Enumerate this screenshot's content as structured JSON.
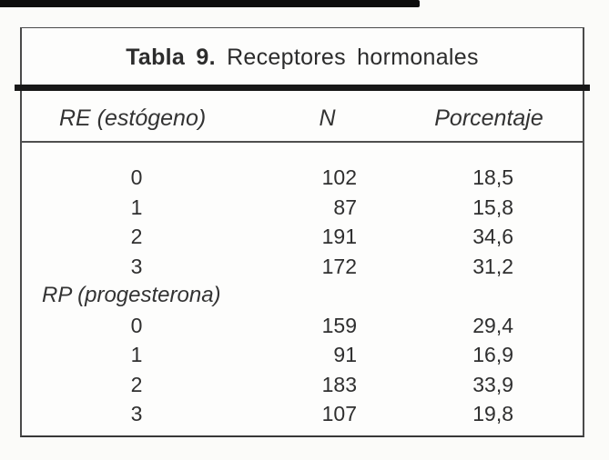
{
  "document": {
    "title": {
      "prefix": "Tabla 9.",
      "text": "Receptores hormonales"
    },
    "columns": {
      "group": "RE (estógeno)",
      "n": "N",
      "pct": "Porcentaje"
    },
    "rows": [
      {
        "level": "0",
        "n": "102",
        "pct": "18,5"
      },
      {
        "level": "1",
        "n": "87",
        "pct": "15,8"
      },
      {
        "level": "2",
        "n": "191",
        "pct": "34,6"
      },
      {
        "level": "3",
        "n": "172",
        "pct": "31,2"
      },
      {
        "label": "RP (progesterona)"
      },
      {
        "level": "0",
        "n": "159",
        "pct": "29,4"
      },
      {
        "level": "1",
        "n": "91",
        "pct": "16,9"
      },
      {
        "level": "2",
        "n": "183",
        "pct": "33,9"
      },
      {
        "level": "3",
        "n": "107",
        "pct": "19,8"
      }
    ]
  },
  "chart_data": {
    "type": "table",
    "title": "Tabla 9. Receptores hormonales",
    "columns": [
      "",
      "N",
      "Porcentaje"
    ],
    "sections": [
      {
        "label": "RE (estógeno)",
        "rows": [
          [
            0,
            102,
            18.5
          ],
          [
            1,
            87,
            15.8
          ],
          [
            2,
            191,
            34.6
          ],
          [
            3,
            172,
            31.2
          ]
        ]
      },
      {
        "label": "RP (progesterona)",
        "rows": [
          [
            0,
            159,
            29.4
          ],
          [
            1,
            91,
            16.9
          ],
          [
            2,
            183,
            33.9
          ],
          [
            3,
            107,
            19.8
          ]
        ]
      }
    ]
  },
  "colors": {
    "ink": "#303030",
    "thick_rule": "#181818",
    "thin_rule": "#4f4f4f",
    "box_border": "#4a4a4a",
    "page_bg": "#fbfbf9",
    "scan_bar": "#0d0d0d"
  }
}
